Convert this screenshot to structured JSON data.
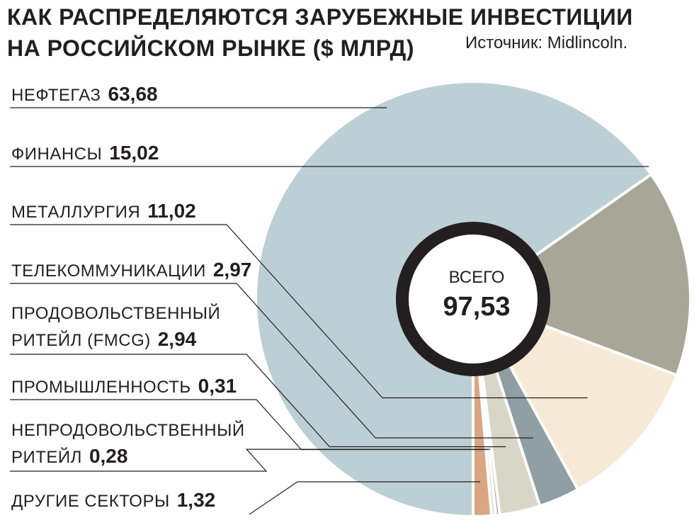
{
  "title_line1": "КАК РАСПРЕДЕЛЯЮТСЯ ЗАРУБЕЖНЫЕ ИНВЕСТИЦИИ",
  "title_line2": "НА РОССИЙСКОМ РЫНКЕ ($ МЛРД)",
  "source": "Источник: Midlincoln.",
  "center_caption": "ВСЕГО",
  "center_total": "97,53",
  "chart_data": {
    "type": "pie",
    "title": "КАК РАСПРЕДЕЛЯЮТСЯ ЗАРУБЕЖНЫЕ ИНВЕСТИЦИИ НА РОССИЙСКОМ РЫНКЕ ($ МЛРД)",
    "total": 97.53,
    "slices": [
      {
        "label": "НЕФТЕГАЗ",
        "label_lines": [
          "НЕФТЕГАЗ"
        ],
        "value": 63.68,
        "value_text": "63,68",
        "color": "#bccfd4"
      },
      {
        "label": "ФИНАНСЫ",
        "label_lines": [
          "ФИНАНСЫ"
        ],
        "value": 15.02,
        "value_text": "15,02",
        "color": "#a7a797"
      },
      {
        "label": "МЕТАЛЛУРГИЯ",
        "label_lines": [
          "МЕТАЛЛУРГИЯ"
        ],
        "value": 11.02,
        "value_text": "11,02",
        "color": "#f6ead6"
      },
      {
        "label": "ТЕЛЕКОММУНИКАЦИИ",
        "label_lines": [
          "ТЕЛЕКОММУНИКАЦИИ"
        ],
        "value": 2.97,
        "value_text": "2,97",
        "color": "#8f9fa3"
      },
      {
        "label": "ПРОДОВОЛЬСТВЕННЫЙ РИТЕЙЛ (FMCG)",
        "label_lines": [
          "ПРОДОВОЛЬСТВЕННЫЙ",
          "РИТЕЙЛ (FMCG)"
        ],
        "value": 2.94,
        "value_text": "2,94",
        "color": "#d8d6c6"
      },
      {
        "label": "ПРОМЫШЛЕННОСТЬ",
        "label_lines": [
          "ПРОМЫШЛЕННОСТЬ"
        ],
        "value": 0.31,
        "value_text": "0,31",
        "color": "#e3ddc9"
      },
      {
        "label": "НЕПРОДОВОЛЬСТВЕННЫЙ РИТЕЙЛ",
        "label_lines": [
          "НЕПРОДОВОЛЬСТВЕННЫЙ",
          "РИТЕЙЛ"
        ],
        "value": 0.28,
        "value_text": "0,28",
        "color": "#a5a899"
      },
      {
        "label": "ДРУГИЕ СЕКТОРЫ",
        "label_lines": [
          "ДРУГИЕ СЕКТОРЫ"
        ],
        "value": 1.32,
        "value_text": "1,32",
        "color": "#d9a684"
      }
    ]
  }
}
